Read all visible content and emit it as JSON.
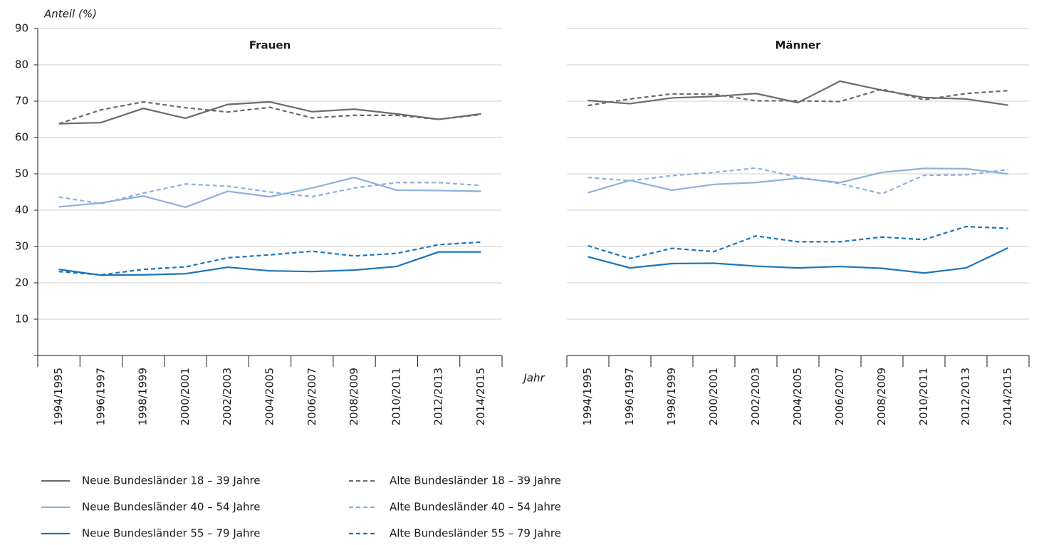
{
  "chart_data": [
    {
      "type": "line",
      "title": "Frauen",
      "y_label": "Anteil (%)",
      "x_label": "Jahr",
      "categories": [
        "1994/1995",
        "1996/1997",
        "1998/1999",
        "2000/2001",
        "2002/2003",
        "2004/2005",
        "2006/2007",
        "2008/2009",
        "2010/2011",
        "2012/2013",
        "2014/2015"
      ],
      "ylim": [
        0,
        90
      ],
      "yticks": [
        10,
        20,
        30,
        40,
        50,
        60,
        70,
        80,
        90
      ],
      "grid": true,
      "series": [
        {
          "name": "Neue Bundesländer 18 – 39 Jahre",
          "color": "#6b6b6b",
          "line_style": "solid",
          "values": [
            63.8,
            64.1,
            68,
            65.3,
            69.1,
            69.8,
            67.1,
            67.8,
            66.5,
            65,
            66.5
          ]
        },
        {
          "name": "Alte Bundesländer 18 – 39 Jahre",
          "color": "#6b6b6b",
          "line_style": "dashed",
          "values": [
            63.8,
            67.6,
            69.8,
            68.2,
            67,
            68.3,
            65.4,
            66.1,
            66.1,
            65,
            66.3
          ]
        },
        {
          "name": "Neue Bundesländer 40 – 54 Jahre",
          "color": "#8fb0dc",
          "line_style": "solid",
          "values": [
            40.9,
            42,
            43.9,
            40.8,
            45.2,
            43.7,
            46.1,
            49,
            45.5,
            45.4,
            45.2
          ]
        },
        {
          "name": "Alte Bundesländer 40 – 54 Jahre",
          "color": "#8fb0dc",
          "line_style": "dashed",
          "values": [
            43.6,
            41.8,
            44.7,
            47.2,
            46.6,
            45,
            43.7,
            46.1,
            47.6,
            47.6,
            46.8
          ]
        },
        {
          "name": "Neue Bundesländer 55 – 79 Jahre",
          "color": "#1b75bb",
          "line_style": "solid",
          "values": [
            23.7,
            22.1,
            22.2,
            22.5,
            24.3,
            23.3,
            23.1,
            23.5,
            24.5,
            28.5,
            28.5
          ]
        },
        {
          "name": "Alte Bundesländer 55 – 79 Jahre",
          "color": "#1b75bb",
          "line_style": "dashed",
          "values": [
            23.1,
            22.2,
            23.7,
            24.4,
            26.9,
            27.7,
            28.7,
            27.4,
            28.1,
            30.5,
            31.2
          ]
        }
      ]
    },
    {
      "type": "line",
      "title": "Männer",
      "categories": [
        "1994/1995",
        "1996/1997",
        "1998/1999",
        "2000/2001",
        "2002/2003",
        "2004/2005",
        "2006/2007",
        "2008/2009",
        "2010/2011",
        "2012/2013",
        "2014/2015"
      ],
      "ylim": [
        0,
        90
      ],
      "yticks": [
        10,
        20,
        30,
        40,
        50,
        60,
        70,
        80,
        90
      ],
      "grid": true,
      "series": [
        {
          "color": "#6b6b6b",
          "line_style": "solid",
          "values": [
            70.2,
            69.3,
            70.9,
            71.3,
            72.1,
            69.6,
            75.5,
            73,
            71,
            70.6,
            68.9
          ]
        },
        {
          "color": "#6b6b6b",
          "line_style": "dashed",
          "values": [
            68.8,
            70.6,
            72,
            71.9,
            70.1,
            70.1,
            69.9,
            73.3,
            70.4,
            72.1,
            72.9
          ]
        },
        {
          "color": "#8fb0dc",
          "line_style": "solid",
          "values": [
            44.8,
            48.2,
            45.5,
            47.1,
            47.6,
            48.8,
            47.6,
            50.4,
            51.5,
            51.4,
            50
          ]
        },
        {
          "color": "#8fb0dc",
          "line_style": "dashed",
          "values": [
            49,
            48.1,
            49.5,
            50.4,
            51.6,
            49.1,
            47.3,
            44.5,
            49.6,
            49.7,
            51.2
          ]
        },
        {
          "color": "#1b75bb",
          "line_style": "solid",
          "values": [
            27.2,
            24.1,
            25.3,
            25.4,
            24.6,
            24.1,
            24.5,
            24,
            22.7,
            24.1,
            29.6
          ]
        },
        {
          "color": "#1b75bb",
          "line_style": "dashed",
          "values": [
            30.2,
            26.7,
            29.5,
            28.6,
            32.9,
            31.3,
            31.3,
            32.6,
            31.9,
            35.5,
            35
          ]
        }
      ]
    }
  ]
}
